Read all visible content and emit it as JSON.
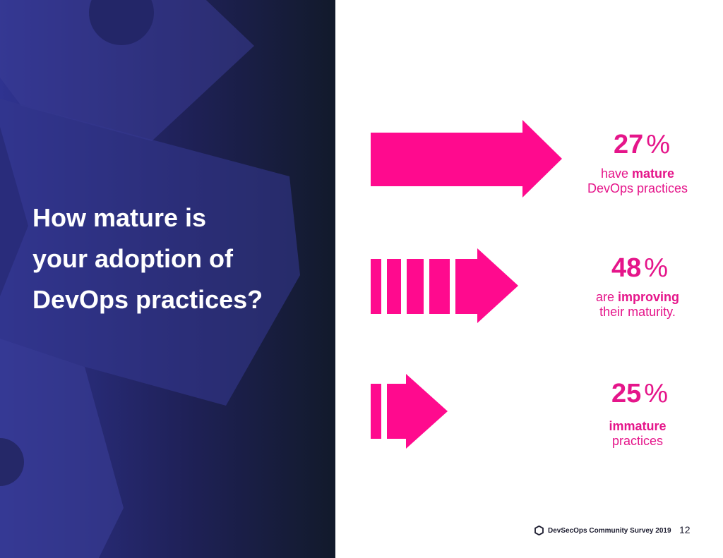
{
  "question": {
    "line1": "How mature is",
    "line2": "your adoption of",
    "line3": "DevOps practices?"
  },
  "chart_data": {
    "type": "other",
    "categories": [
      "mature",
      "improving",
      "immature"
    ],
    "values": [
      27,
      48,
      25
    ],
    "unit": "%"
  },
  "stats": [
    {
      "number": "27",
      "symbol": "%",
      "line1_prefix": "have ",
      "line1_bold": "mature",
      "line2": "DevOps practices"
    },
    {
      "number": "48",
      "symbol": "%",
      "line1_prefix": "are ",
      "line1_bold": "improving",
      "line2": "their maturity."
    },
    {
      "number": "25",
      "symbol": "%",
      "line1_prefix": "",
      "line1_bold": "immature",
      "line2": "practices"
    }
  ],
  "footer": {
    "survey": "DevSecOps Community Survey 2019",
    "page_number": "12",
    "logo_icon": "hexagon-logo-icon"
  },
  "colors": {
    "accent": "#e5158a",
    "panel_dark": "#131a2e",
    "panel_blue": "#2e2f82",
    "text_light": "#ffffff"
  }
}
